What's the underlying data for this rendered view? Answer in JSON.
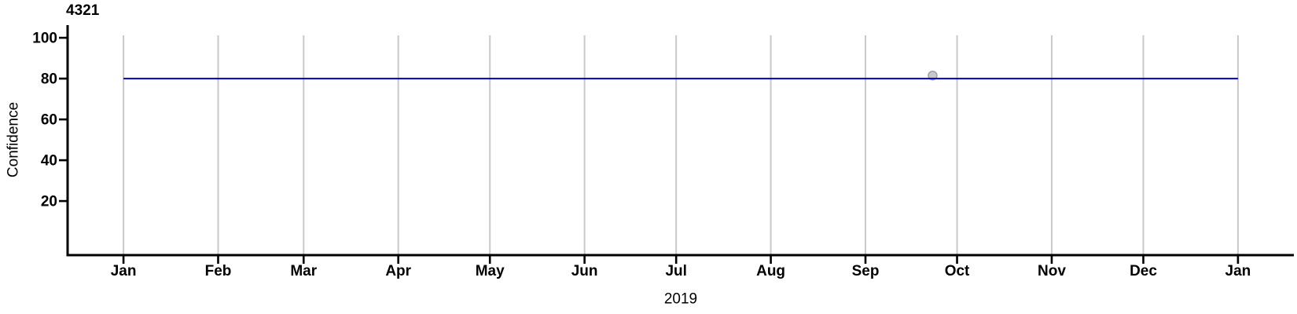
{
  "chart_data": {
    "type": "line",
    "title": "4321",
    "xlabel": "2019",
    "ylabel": "Confidence",
    "x_unit": "day_of_year_2019",
    "x_domain_days": [
      -18.3,
      383.3
    ],
    "y_domain": [
      -6.5,
      106.2
    ],
    "x_ticks": [
      {
        "label": "Jan",
        "day": 0
      },
      {
        "label": "Feb",
        "day": 31
      },
      {
        "label": "Mar",
        "day": 59
      },
      {
        "label": "Apr",
        "day": 90
      },
      {
        "label": "May",
        "day": 120
      },
      {
        "label": "Jun",
        "day": 151
      },
      {
        "label": "Jul",
        "day": 181
      },
      {
        "label": "Aug",
        "day": 212
      },
      {
        "label": "Sep",
        "day": 243
      },
      {
        "label": "Oct",
        "day": 273
      },
      {
        "label": "Nov",
        "day": 304
      },
      {
        "label": "Dec",
        "day": 334
      },
      {
        "label": "Jan",
        "day": 365
      }
    ],
    "y_ticks": [
      20,
      40,
      60,
      80,
      100
    ],
    "grid": {
      "vertical": true,
      "horizontal": false,
      "color": "#c9c9c9"
    },
    "axis_color": "#000000",
    "text_color": "#000000",
    "background": "#ffffff",
    "series": [
      {
        "name": "confidence-level-line",
        "type": "line",
        "color": "#0000c0",
        "width": 2,
        "points": [
          {
            "day": 0,
            "value": 80
          },
          {
            "day": 365,
            "value": 80
          }
        ]
      }
    ],
    "markers": [
      {
        "name": "observation-point",
        "day": 265,
        "value": 81.5,
        "fill": "#c7c7cd",
        "stroke": "#a0a0a8",
        "radius": 5.5
      }
    ]
  }
}
